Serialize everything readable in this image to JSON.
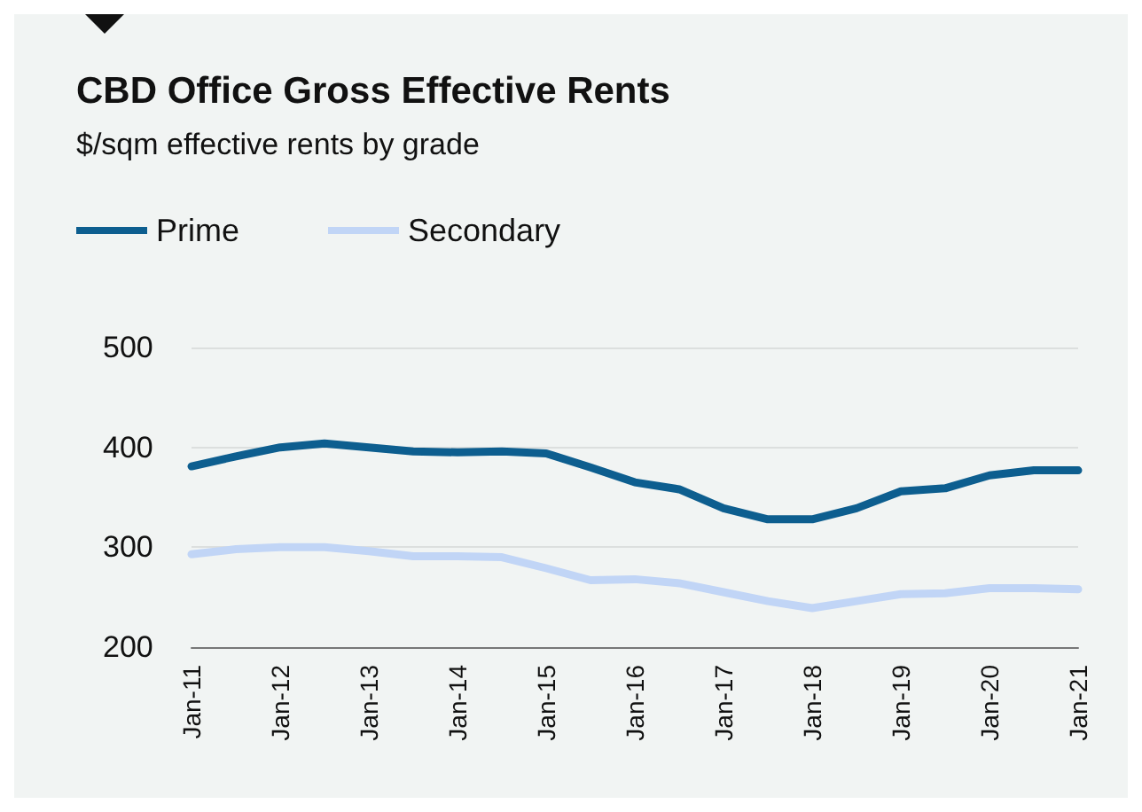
{
  "chart_data": {
    "type": "line",
    "title": "CBD Office Gross Effective Rents",
    "subtitle": "$/sqm effective rents by grade",
    "categories": [
      "Jan-11",
      null,
      "Jan-12",
      null,
      "Jan-13",
      null,
      "Jan-14",
      null,
      "Jan-15",
      null,
      "Jan-16",
      null,
      "Jan-17",
      null,
      "Jan-18",
      null,
      "Jan-19",
      null,
      "Jan-20",
      null,
      "Jan-21"
    ],
    "series": [
      {
        "name": "Prime",
        "color": "#0d5e8f",
        "values": [
          381,
          391,
          400,
          404,
          400,
          396,
          395,
          396,
          394,
          380,
          365,
          358,
          339,
          328,
          328,
          339,
          356,
          359,
          372,
          377,
          377
        ]
      },
      {
        "name": "Secondary",
        "color": "#c1d5f6",
        "values": [
          293,
          298,
          300,
          300,
          296,
          291,
          291,
          290,
          279,
          267,
          268,
          264,
          255,
          246,
          239,
          246,
          253,
          254,
          259,
          259,
          258
        ]
      }
    ],
    "ylim": [
      200,
      500
    ],
    "yticks": [
      200,
      300,
      400,
      500
    ],
    "grid": "y",
    "legend": "top left",
    "marker": "none",
    "line_style": "solid"
  }
}
